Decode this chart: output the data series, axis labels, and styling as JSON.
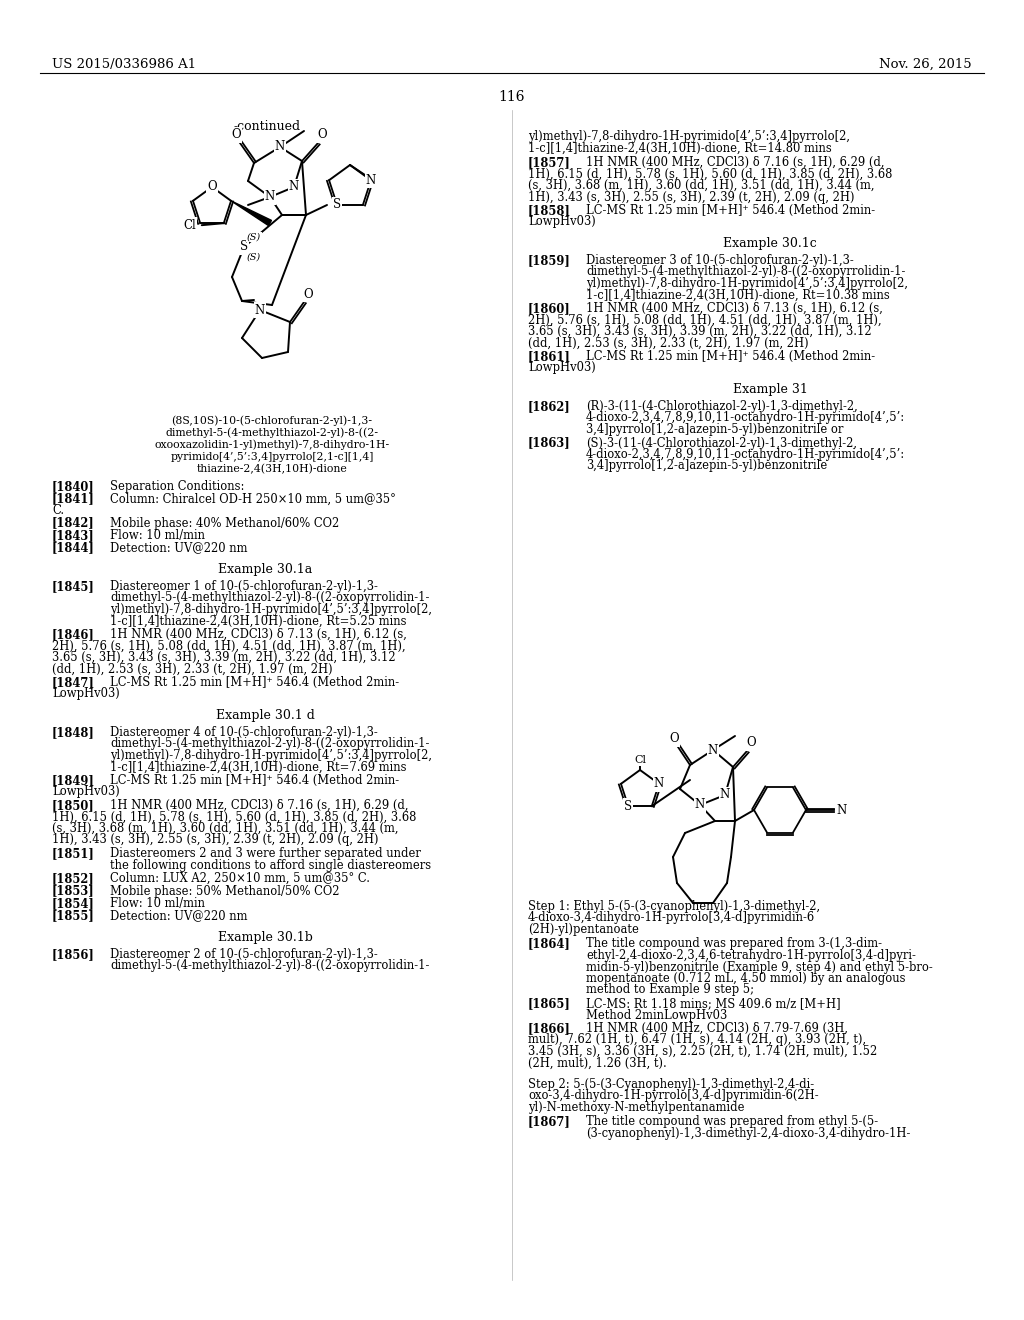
{
  "page_number": "116",
  "header_left": "US 2015/0336986 A1",
  "header_right": "Nov. 26, 2015",
  "background_color": "#ffffff",
  "text_color": "#000000"
}
